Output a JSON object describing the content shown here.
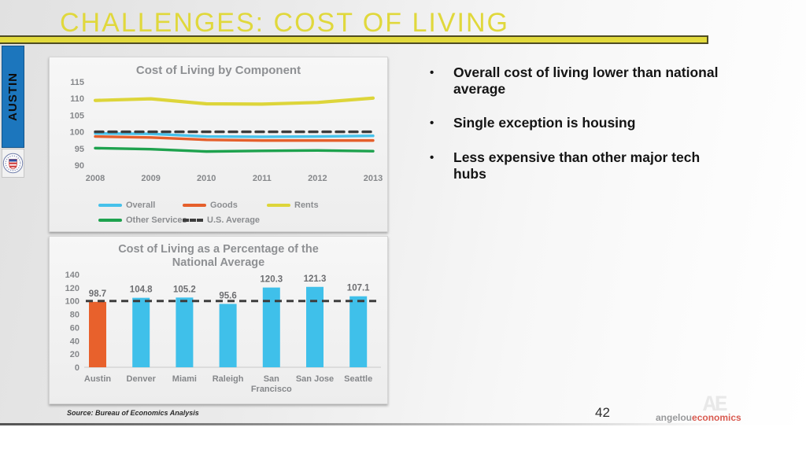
{
  "slide": {
    "title": "CHALLENGES: COST OF LIVING",
    "sidebar_label": "AUSTIN",
    "bullets": [
      "Overall cost of living lower than national average",
      "Single exception is housing",
      "Less expensive than other major tech hubs"
    ],
    "source_note": "Source: Bureau of Economics Analysis",
    "page_number": "42",
    "logo": {
      "gray": "angelou",
      "red": "economics",
      "monogram": "AE"
    }
  },
  "colors": {
    "accent_yellow": "#e2da3c",
    "yellow_border": "#4f4c22",
    "tab_blue": "#1c76bd",
    "chart_text_gray": "#8b8d90",
    "axis_gray": "#85878a",
    "bar_blue": "#3fc0ea",
    "austin_orange": "#e8612c",
    "reference_dash": "#3d3d3d"
  },
  "chart_data": [
    {
      "type": "line",
      "title": "Cost of Living by Component",
      "x": [
        2008,
        2009,
        2010,
        2011,
        2012,
        2013
      ],
      "xlabel": "",
      "ylabel": "",
      "ylim": [
        90,
        115
      ],
      "yticks": [
        90,
        95,
        100,
        105,
        110,
        115
      ],
      "grid": false,
      "legend_position": "bottom",
      "series": [
        {
          "name": "Overall",
          "color": "#46c1ea",
          "dash": false,
          "width": 3.4,
          "values": [
            99.5,
            99.4,
            98.6,
            98.5,
            98.6,
            98.8
          ]
        },
        {
          "name": "Goods",
          "color": "#e55f2b",
          "dash": false,
          "width": 3.4,
          "values": [
            98.6,
            98.3,
            97.6,
            97.4,
            97.4,
            97.4
          ]
        },
        {
          "name": "Rents",
          "color": "#ddd53a",
          "dash": false,
          "width": 4.2,
          "values": [
            109.4,
            109.9,
            108.4,
            108.3,
            108.8,
            110.1
          ]
        },
        {
          "name": "Other Services",
          "color": "#1ea24e",
          "dash": false,
          "width": 3.4,
          "values": [
            95.1,
            94.8,
            94.1,
            94.3,
            94.4,
            94.2
          ]
        },
        {
          "name": "U.S. Average",
          "color": "#3d3d3d",
          "dash": true,
          "width": 3.4,
          "values": [
            100,
            100,
            100,
            100,
            100,
            100
          ]
        }
      ]
    },
    {
      "type": "bar",
      "title": "Cost of Living as a Percentage of the National Average",
      "categories": [
        "Austin",
        "Denver",
        "Miami",
        "Raleigh",
        "San Francisco",
        "San Jose",
        "Seattle"
      ],
      "values": [
        98.7,
        104.8,
        105.2,
        95.6,
        120.3,
        121.3,
        107.1
      ],
      "bar_colors": [
        "#e8612c",
        "#3fc0ea",
        "#3fc0ea",
        "#3fc0ea",
        "#3fc0ea",
        "#3fc0ea",
        "#3fc0ea"
      ],
      "reference_line": 100,
      "ylim": [
        0,
        140
      ],
      "yticks": [
        0,
        20,
        40,
        60,
        80,
        100,
        120,
        140
      ],
      "grid": false
    }
  ]
}
